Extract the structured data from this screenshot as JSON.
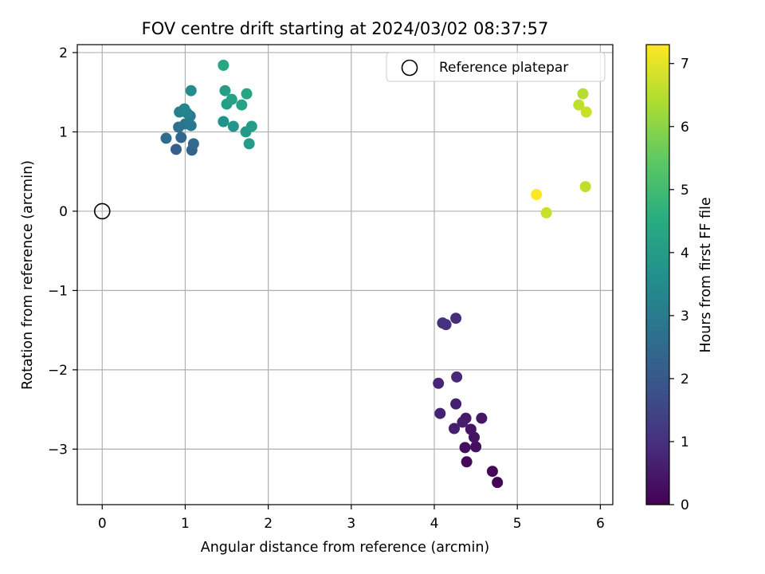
{
  "chart_data": {
    "type": "scatter",
    "title": "FOV centre drift starting at 2024/03/02 08:37:57",
    "xlabel": "Angular distance from reference (arcmin)",
    "ylabel": "Rotation from reference (arcmin)",
    "xlim": [
      -0.3,
      6.15
    ],
    "ylim": [
      -3.7,
      2.1
    ],
    "xticks": [
      0,
      1,
      2,
      3,
      4,
      5,
      6
    ],
    "yticks": [
      2,
      1,
      0,
      -1,
      -2,
      -3
    ],
    "xtick_labels": [
      "0",
      "1",
      "2",
      "3",
      "4",
      "5",
      "6"
    ],
    "ytick_labels": [
      "2",
      "1",
      "0",
      "−1",
      "−2",
      "−3"
    ],
    "grid": true,
    "legend": {
      "position": "top-right",
      "entries": [
        "Reference platepar"
      ]
    },
    "colorbar": {
      "label": "Hours from first FF file",
      "colormap": "viridis",
      "range": [
        0,
        7.3
      ],
      "ticks": [
        0,
        1,
        2,
        3,
        4,
        5,
        6,
        7
      ],
      "tick_labels": [
        "0",
        "1",
        "2",
        "3",
        "4",
        "5",
        "6",
        "7"
      ]
    },
    "reference_point": {
      "x": 0,
      "y": 0,
      "marker": "hollow-circle"
    },
    "points": [
      {
        "x": 4.76,
        "y": -3.42,
        "hours": 0.05
      },
      {
        "x": 4.7,
        "y": -3.28,
        "hours": 0.12
      },
      {
        "x": 4.39,
        "y": -3.16,
        "hours": 0.18
      },
      {
        "x": 4.37,
        "y": -2.98,
        "hours": 0.25
      },
      {
        "x": 4.5,
        "y": -2.97,
        "hours": 0.3
      },
      {
        "x": 4.48,
        "y": -2.85,
        "hours": 0.35
      },
      {
        "x": 4.44,
        "y": -2.75,
        "hours": 0.4
      },
      {
        "x": 4.57,
        "y": -2.61,
        "hours": 0.45
      },
      {
        "x": 4.38,
        "y": -2.61,
        "hours": 0.5
      },
      {
        "x": 4.34,
        "y": -2.66,
        "hours": 0.55
      },
      {
        "x": 4.24,
        "y": -2.74,
        "hours": 0.6
      },
      {
        "x": 4.26,
        "y": -2.43,
        "hours": 0.65
      },
      {
        "x": 4.07,
        "y": -2.55,
        "hours": 0.7
      },
      {
        "x": 4.05,
        "y": -2.17,
        "hours": 0.78
      },
      {
        "x": 4.27,
        "y": -2.09,
        "hours": 0.82
      },
      {
        "x": 4.26,
        "y": -1.35,
        "hours": 0.9
      },
      {
        "x": 4.1,
        "y": -1.41,
        "hours": 1.0
      },
      {
        "x": 4.14,
        "y": -1.43,
        "hours": 1.05
      },
      {
        "x": 0.89,
        "y": 0.78,
        "hours": 2.2
      },
      {
        "x": 1.08,
        "y": 0.77,
        "hours": 2.3
      },
      {
        "x": 0.95,
        "y": 0.93,
        "hours": 2.4
      },
      {
        "x": 1.1,
        "y": 0.85,
        "hours": 2.5
      },
      {
        "x": 0.77,
        "y": 0.92,
        "hours": 2.6
      },
      {
        "x": 0.92,
        "y": 1.06,
        "hours": 2.7
      },
      {
        "x": 1.0,
        "y": 1.1,
        "hours": 2.8
      },
      {
        "x": 1.07,
        "y": 1.08,
        "hours": 2.9
      },
      {
        "x": 1.06,
        "y": 1.2,
        "hours": 3.0
      },
      {
        "x": 0.93,
        "y": 1.25,
        "hours": 3.1
      },
      {
        "x": 1.02,
        "y": 1.24,
        "hours": 3.2
      },
      {
        "x": 0.99,
        "y": 1.29,
        "hours": 3.3
      },
      {
        "x": 1.07,
        "y": 1.52,
        "hours": 3.5
      },
      {
        "x": 1.46,
        "y": 1.13,
        "hours": 3.7
      },
      {
        "x": 1.58,
        "y": 1.07,
        "hours": 3.8
      },
      {
        "x": 1.73,
        "y": 1.0,
        "hours": 3.9
      },
      {
        "x": 1.77,
        "y": 0.85,
        "hours": 4.0
      },
      {
        "x": 1.8,
        "y": 1.07,
        "hours": 4.0
      },
      {
        "x": 1.48,
        "y": 1.52,
        "hours": 4.1
      },
      {
        "x": 1.5,
        "y": 1.35,
        "hours": 4.1
      },
      {
        "x": 1.56,
        "y": 1.41,
        "hours": 4.2
      },
      {
        "x": 1.68,
        "y": 1.34,
        "hours": 4.2
      },
      {
        "x": 1.74,
        "y": 1.48,
        "hours": 4.25
      },
      {
        "x": 1.46,
        "y": 1.84,
        "hours": 4.3
      },
      {
        "x": 5.82,
        "y": 0.31,
        "hours": 6.6
      },
      {
        "x": 5.79,
        "y": 1.48,
        "hours": 6.5
      },
      {
        "x": 5.74,
        "y": 1.34,
        "hours": 6.6
      },
      {
        "x": 5.83,
        "y": 1.25,
        "hours": 6.7
      },
      {
        "x": 5.35,
        "y": -0.02,
        "hours": 6.7
      },
      {
        "x": 5.23,
        "y": 0.21,
        "hours": 7.3
      }
    ]
  }
}
